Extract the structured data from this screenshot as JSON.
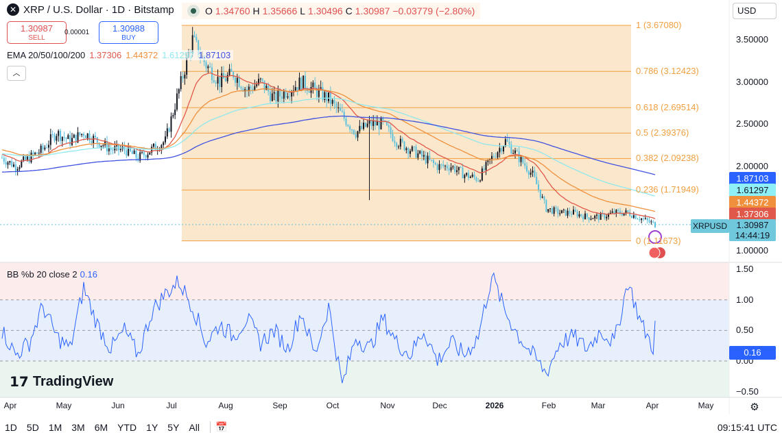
{
  "header": {
    "title": "XRP / U.S. Dollar · 1D · Bitstamp",
    "o_label": "O",
    "o": "1.34760",
    "h_label": "H",
    "h": "1.35666",
    "l_label": "L",
    "l": "1.30496",
    "c_label": "C",
    "c": "1.30987",
    "change": "−0.03779 (−2.80%)"
  },
  "trade": {
    "sell_price": "1.30987",
    "sell_label": "SELL",
    "spread": "0.00001",
    "buy_price": "1.30988",
    "buy_label": "BUY"
  },
  "ema": {
    "label": "EMA 20/50/100/200",
    "v20": "1.37306",
    "v50": "1.44372",
    "v100": "1.61297",
    "v200": "1.87103"
  },
  "currency": "USD",
  "price_axis": [
    "3.50000",
    "3.00000",
    "2.50000",
    "2.00000",
    "1.00000"
  ],
  "tags": {
    "ema200": "1.87103",
    "ema100": "1.61297",
    "ema50": "1.44372",
    "ema20": "1.37306",
    "symbol": "XRPUSD",
    "last": "1.30987",
    "countdown": "14:44:19",
    "bb": "0.16"
  },
  "fib": [
    {
      "label": "1 (3.67080)",
      "value": 3.6708
    },
    {
      "label": "0.786 (3.12423)",
      "value": 3.12423
    },
    {
      "label": "0.618 (2.69514)",
      "value": 2.69514
    },
    {
      "label": "0.5 (2.39376)",
      "value": 2.39376
    },
    {
      "label": "0.382 (2.09238)",
      "value": 2.09238
    },
    {
      "label": "0.236 (1.71949)",
      "value": 1.71949
    },
    {
      "label": "0 (1.11673)",
      "value": 1.11673
    }
  ],
  "bb": {
    "label": "BB %b 20 close 2",
    "value": "0.16",
    "axis": [
      "1.50",
      "1.00",
      "0.50",
      "0.00",
      "−0.50"
    ]
  },
  "time_axis": [
    "Apr",
    "May",
    "Jun",
    "Jul",
    "Aug",
    "Sep",
    "Oct",
    "Nov",
    "Dec",
    "2026",
    "Feb",
    "Mar",
    "Apr",
    "May"
  ],
  "bottom": {
    "ranges": [
      "1D",
      "5D",
      "1M",
      "3M",
      "6M",
      "YTD",
      "1Y",
      "5Y",
      "All"
    ],
    "clock": "09:15:41 UTC"
  },
  "brand": "TradingView",
  "colors": {
    "up": "#131722",
    "down": "#5bc0de",
    "ema20": "#e0584a",
    "ema50": "#f0903c",
    "ema100": "#8ee8ee",
    "ema200": "#3f51e0",
    "fib": "#f0a040",
    "bb": "#2962ff"
  },
  "chart_data": {
    "type": "candlestick",
    "title": "XRP / U.S. Dollar · 1D · Bitstamp",
    "ylim": [
      0.9,
      3.75
    ],
    "weekly_close": [
      2.1,
      2.0,
      2.1,
      2.2,
      2.4,
      2.3,
      2.4,
      2.3,
      2.2,
      2.2,
      2.1,
      2.2,
      2.3,
      2.9,
      3.5,
      3.2,
      3.0,
      3.1,
      2.9,
      3.0,
      2.8,
      2.9,
      3.0,
      2.9,
      2.8,
      2.6,
      2.4,
      2.5,
      2.5,
      2.3,
      2.2,
      2.1,
      2.0,
      2.0,
      1.9,
      1.85,
      2.1,
      2.3,
      2.1,
      1.9,
      1.5,
      1.45,
      1.45,
      1.4,
      1.4,
      1.45,
      1.45,
      1.38,
      1.31
    ],
    "bb_percent": [
      0.5,
      0.1,
      0.3,
      0.9,
      0.4,
      0.2,
      1.2,
      0.6,
      0.2,
      0.5,
      0.1,
      0.8,
      1.1,
      1.3,
      0.9,
      0.3,
      0.6,
      0.4,
      0.7,
      0.3,
      0.5,
      0.2,
      0.8,
      0.1,
      0.9,
      -0.4,
      0.4,
      0.2,
      0.7,
      0.3,
      0.1,
      0.5,
      0.0,
      0.3,
      0.1,
      0.4,
      1.4,
      0.8,
      0.4,
      0.1,
      -0.2,
      0.3,
      0.4,
      0.2,
      0.5,
      0.3,
      1.3,
      0.6,
      0.16
    ]
  }
}
